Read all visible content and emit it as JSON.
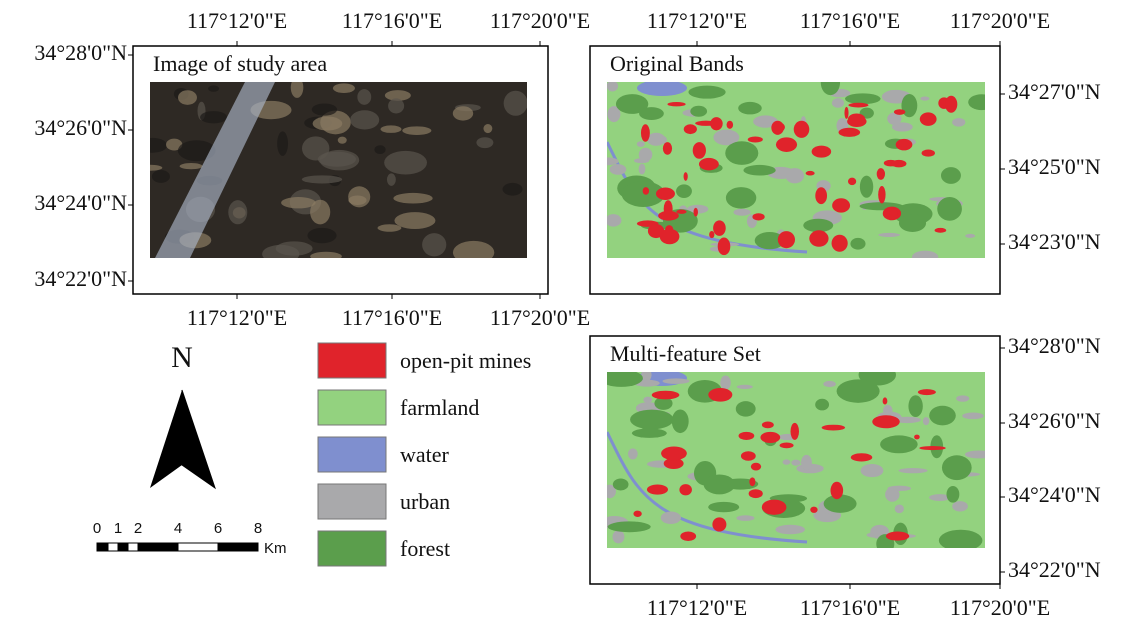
{
  "panels": [
    {
      "title": "Image of study area",
      "top_labels": [
        "117°12'0\"E",
        "117°16'0\"E",
        "117°20'0\"E"
      ],
      "bottom_labels": [
        "117°12'0\"E",
        "117°16'0\"E",
        "117°20'0\"E"
      ],
      "left_labels": [
        "34°28'0\"N",
        "34°26'0\"N",
        "34°24'0\"N",
        "34°22'0\"N"
      ]
    },
    {
      "title": "Original Bands",
      "top_labels": [
        "117°12'0\"E",
        "117°16'0\"E",
        "117°20'0\"E"
      ],
      "right_labels": [
        "34°27'0\"N",
        "34°25'0\"N",
        "34°23'0\"N"
      ]
    },
    {
      "title": "Multi-feature Set",
      "bottom_labels": [
        "117°12'0\"E",
        "117°16'0\"E",
        "117°20'0\"E"
      ],
      "right_labels": [
        "34°28'0\"N",
        "34°26'0\"N",
        "34°24'0\"N",
        "34°22'0\"N"
      ]
    }
  ],
  "legend": [
    {
      "label": "open-pit mines",
      "color": "#e0232b"
    },
    {
      "label": "farmland",
      "color": "#93d27f"
    },
    {
      "label": "water",
      "color": "#7f8fcf"
    },
    {
      "label": "urban",
      "color": "#a9a9ab"
    },
    {
      "label": "forest",
      "color": "#5b9e4c"
    }
  ],
  "north_label": "N",
  "scale": {
    "ticks": [
      "0",
      "1",
      "2",
      "4",
      "6",
      "8"
    ],
    "unit": "Km"
  }
}
